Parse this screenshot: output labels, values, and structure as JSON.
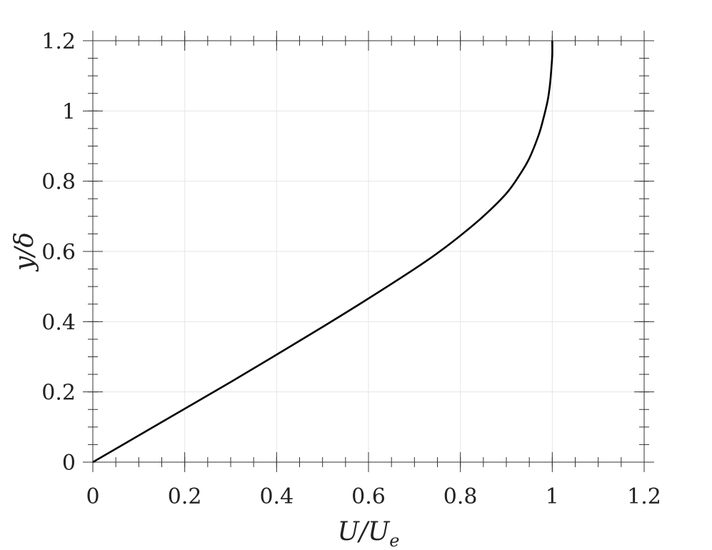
{
  "chart_data": {
    "type": "line",
    "title": "",
    "xlabel": {
      "main": "U/U",
      "sub": "e"
    },
    "ylabel": "y/δ",
    "xlim": [
      0,
      1.2
    ],
    "ylim": [
      0,
      1.2
    ],
    "xticks": [
      0,
      0.2,
      0.4,
      0.6,
      0.8,
      1,
      1.2
    ],
    "yticks": [
      0,
      0.2,
      0.4,
      0.6,
      0.8,
      1,
      1.2
    ],
    "xtick_labels": [
      "0",
      "0.2",
      "0.4",
      "0.6",
      "0.8",
      "1",
      "1.2"
    ],
    "ytick_labels": [
      "0",
      "0.2",
      "0.4",
      "0.6",
      "0.8",
      "1",
      "1.2"
    ],
    "grid": true,
    "minor_ticks": true,
    "box": true,
    "series": [
      {
        "color": "#000000",
        "x": [
          0,
          0.1,
          0.2,
          0.3,
          0.4,
          0.5,
          0.6,
          0.7,
          0.75,
          0.8,
          0.85,
          0.9,
          0.93,
          0.95,
          0.97,
          0.98,
          0.99,
          0.995,
          0.998,
          1.0,
          1.0
        ],
        "y": [
          0,
          0.076,
          0.152,
          0.228,
          0.306,
          0.385,
          0.466,
          0.55,
          0.595,
          0.645,
          0.7,
          0.765,
          0.82,
          0.865,
          0.93,
          0.975,
          1.03,
          1.075,
          1.12,
          1.16,
          1.2
        ]
      }
    ]
  }
}
